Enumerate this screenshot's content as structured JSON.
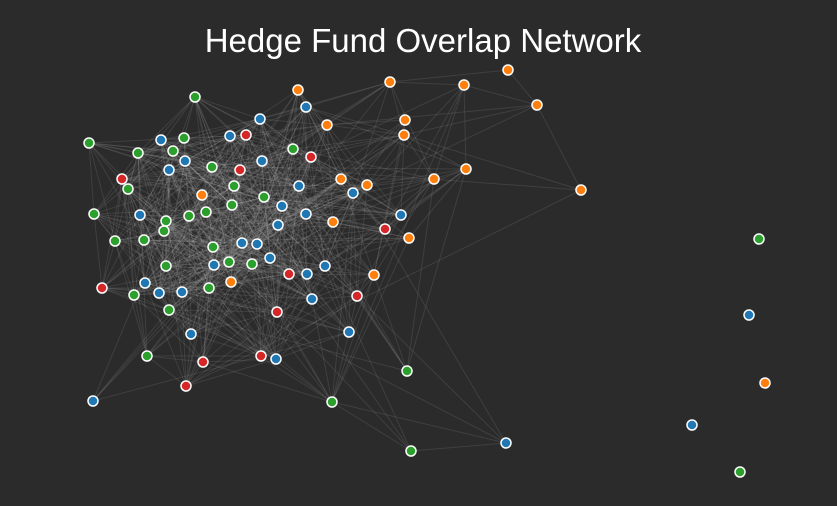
{
  "header": {
    "title": "Hedge Fund Overlap Network"
  }
}
